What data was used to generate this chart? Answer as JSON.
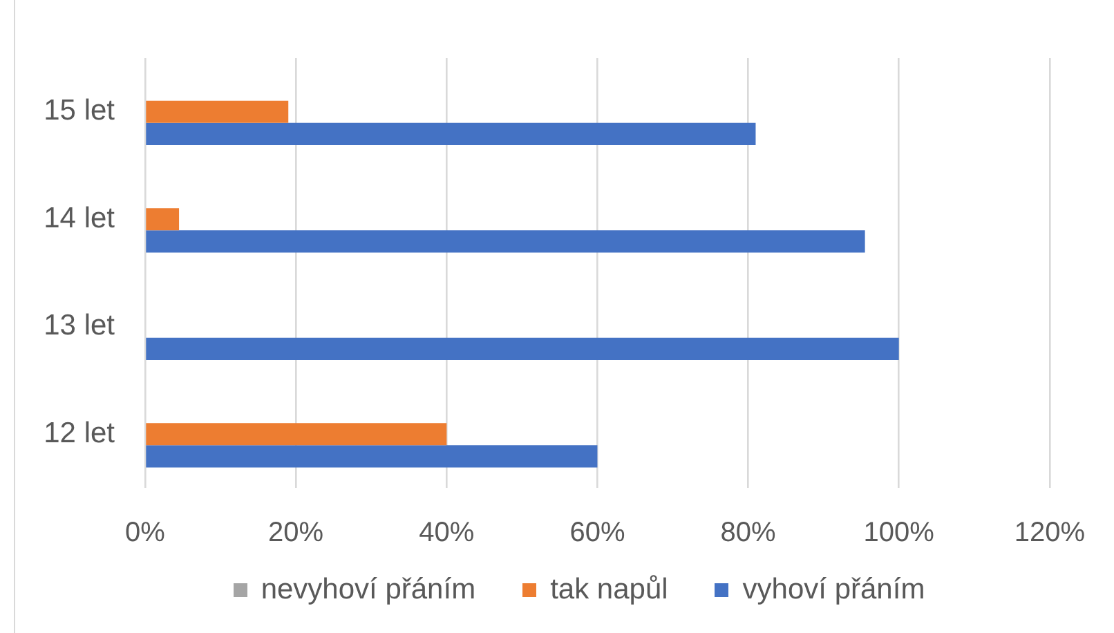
{
  "chart_data": {
    "type": "bar",
    "orientation": "horizontal",
    "categories": [
      "15 let",
      "14 let",
      "13 let",
      "12 let"
    ],
    "series": [
      {
        "name": "nevyhoví přáním",
        "color": "#a5a5a5",
        "values": [
          0,
          0,
          0,
          0
        ]
      },
      {
        "name": "tak napůl",
        "color": "#ed7d31",
        "values": [
          19,
          4.5,
          0,
          40
        ]
      },
      {
        "name": "vyhoví přáním",
        "color": "#4472c4",
        "values": [
          81,
          95.5,
          100,
          60
        ]
      }
    ],
    "xlim": [
      0,
      120
    ],
    "xticks": [
      {
        "value": 0,
        "label": "0%"
      },
      {
        "value": 20,
        "label": "20%"
      },
      {
        "value": 40,
        "label": "40%"
      },
      {
        "value": 60,
        "label": "60%"
      },
      {
        "value": 80,
        "label": "80%"
      },
      {
        "value": 100,
        "label": "100%"
      },
      {
        "value": 120,
        "label": "120%"
      }
    ],
    "grid": "x",
    "legend": "bottom"
  }
}
